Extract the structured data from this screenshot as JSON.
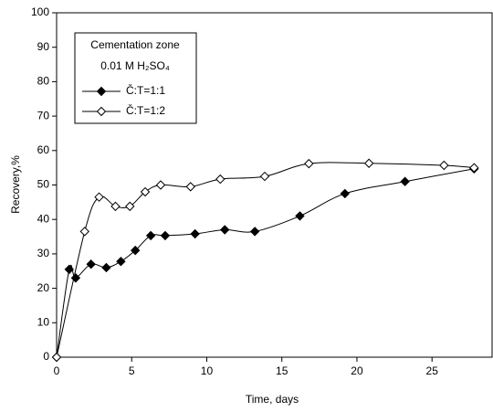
{
  "chart_data": {
    "type": "line",
    "x_label": "Time, days",
    "y_label": "Recovery,%",
    "legend_title": [
      "Cementation zone",
      "0.01 M H₂SO₄"
    ],
    "legend_position": "upper left",
    "xlim": [
      0,
      29
    ],
    "xticks": [
      0,
      5,
      10,
      15,
      20,
      25
    ],
    "ylim": [
      0,
      100
    ],
    "yticks": [
      0,
      10,
      20,
      30,
      40,
      50,
      60,
      70,
      80,
      90,
      100
    ],
    "grid": false,
    "series": [
      {
        "name": "Č:T=1:1",
        "color": "#000000",
        "marker": "filled",
        "x": [
          0,
          0.84,
          1.27,
          2.29,
          3.31,
          4.28,
          5.24,
          6.27,
          7.23,
          9.22,
          11.2,
          13.2,
          16.2,
          19.2,
          23.2,
          27.8
        ],
        "values": [
          0,
          25.5,
          23,
          27,
          26,
          27.8,
          31,
          35.3,
          35.3,
          35.8,
          37,
          36.5,
          41,
          47.5,
          51,
          54.7
        ]
      },
      {
        "name": "Č:T=1:2",
        "color": "#000000",
        "marker": "open",
        "x": [
          0,
          1.87,
          2.83,
          3.92,
          4.88,
          5.9,
          6.93,
          8.92,
          10.9,
          13.86,
          16.8,
          20.8,
          25.8,
          27.8
        ],
        "values": [
          0,
          36.5,
          46.5,
          43.8,
          43.8,
          48,
          50,
          49.5,
          51.7,
          52.5,
          56.2,
          56.3,
          55.7,
          55
        ]
      }
    ]
  }
}
